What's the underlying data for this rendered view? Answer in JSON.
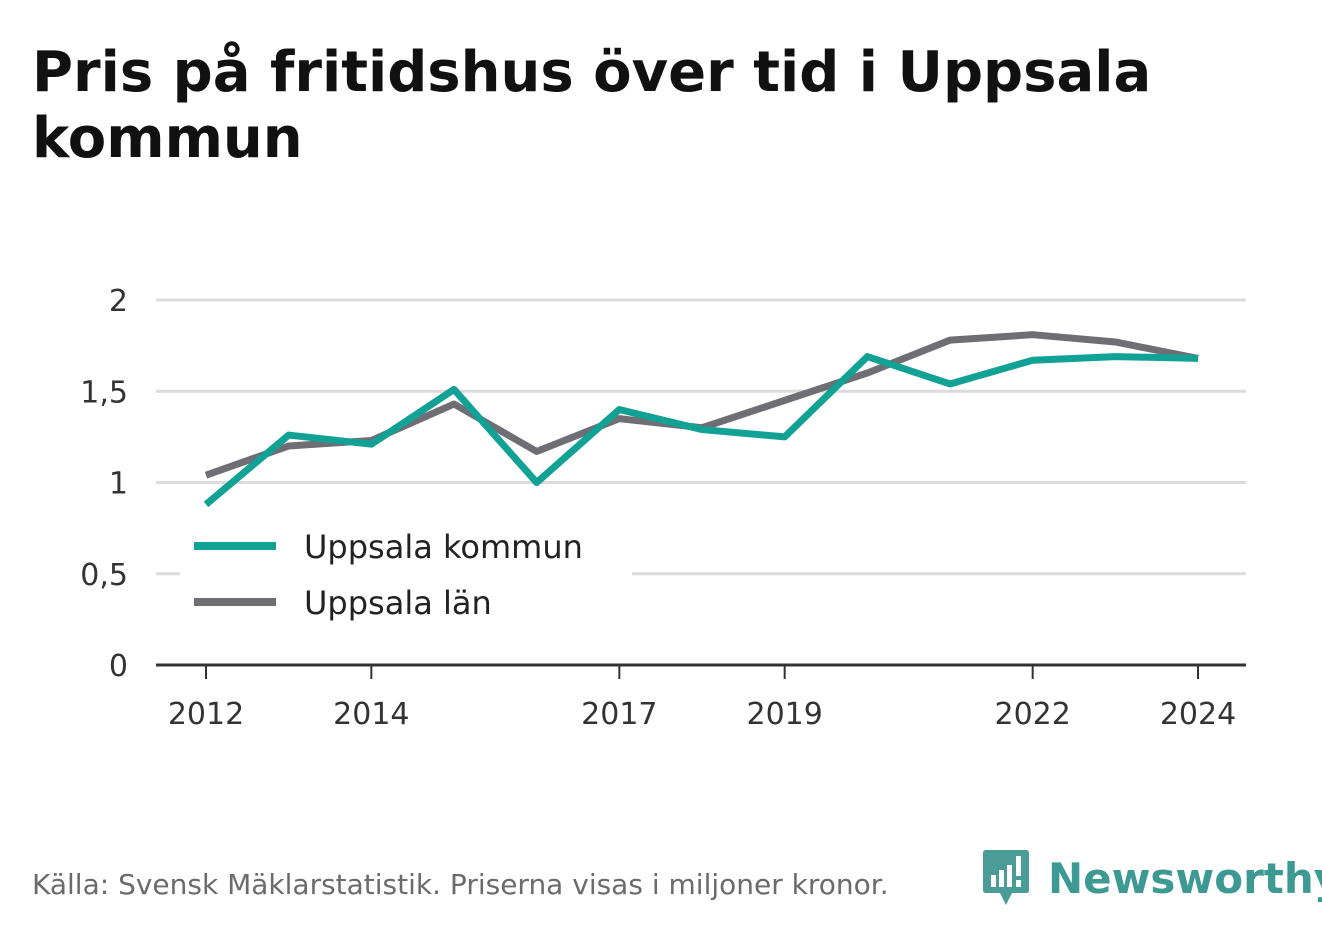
{
  "title": "Pris på fritidshus över tid i Uppsala kommun",
  "footer": {
    "source": "Källa: Svensk Mäklarstatistik. Priserna visas i miljoner kronor."
  },
  "brand": {
    "name": "Newsworthy",
    "icon": "newsworthy-logo-icon",
    "color": "#3c9a93"
  },
  "chart_data": {
    "type": "line",
    "title": "Pris på fritidshus över tid i Uppsala kommun",
    "xlabel": "",
    "ylabel": "",
    "x": [
      2012,
      2013,
      2014,
      2015,
      2016,
      2017,
      2018,
      2019,
      2020,
      2021,
      2022,
      2023,
      2024
    ],
    "x_ticks": [
      "2012",
      "2014",
      "2017",
      "2019",
      "2022",
      "2024"
    ],
    "y_ticks": [
      "0",
      "0,5",
      "1",
      "1,5",
      "2"
    ],
    "ylim": [
      0,
      2
    ],
    "grid": "horizontal",
    "legend_position": "left-middle",
    "series": [
      {
        "name": "Uppsala kommun",
        "color": "#12a195",
        "values": [
          0.88,
          1.26,
          1.21,
          1.51,
          1.0,
          1.4,
          1.29,
          1.25,
          1.69,
          1.54,
          1.67,
          1.69,
          1.68
        ]
      },
      {
        "name": "Uppsala län",
        "color": "#6f6e74",
        "values": [
          1.04,
          1.2,
          1.23,
          1.43,
          1.17,
          1.35,
          1.3,
          1.45,
          1.6,
          1.78,
          1.81,
          1.77,
          1.68
        ]
      }
    ]
  }
}
